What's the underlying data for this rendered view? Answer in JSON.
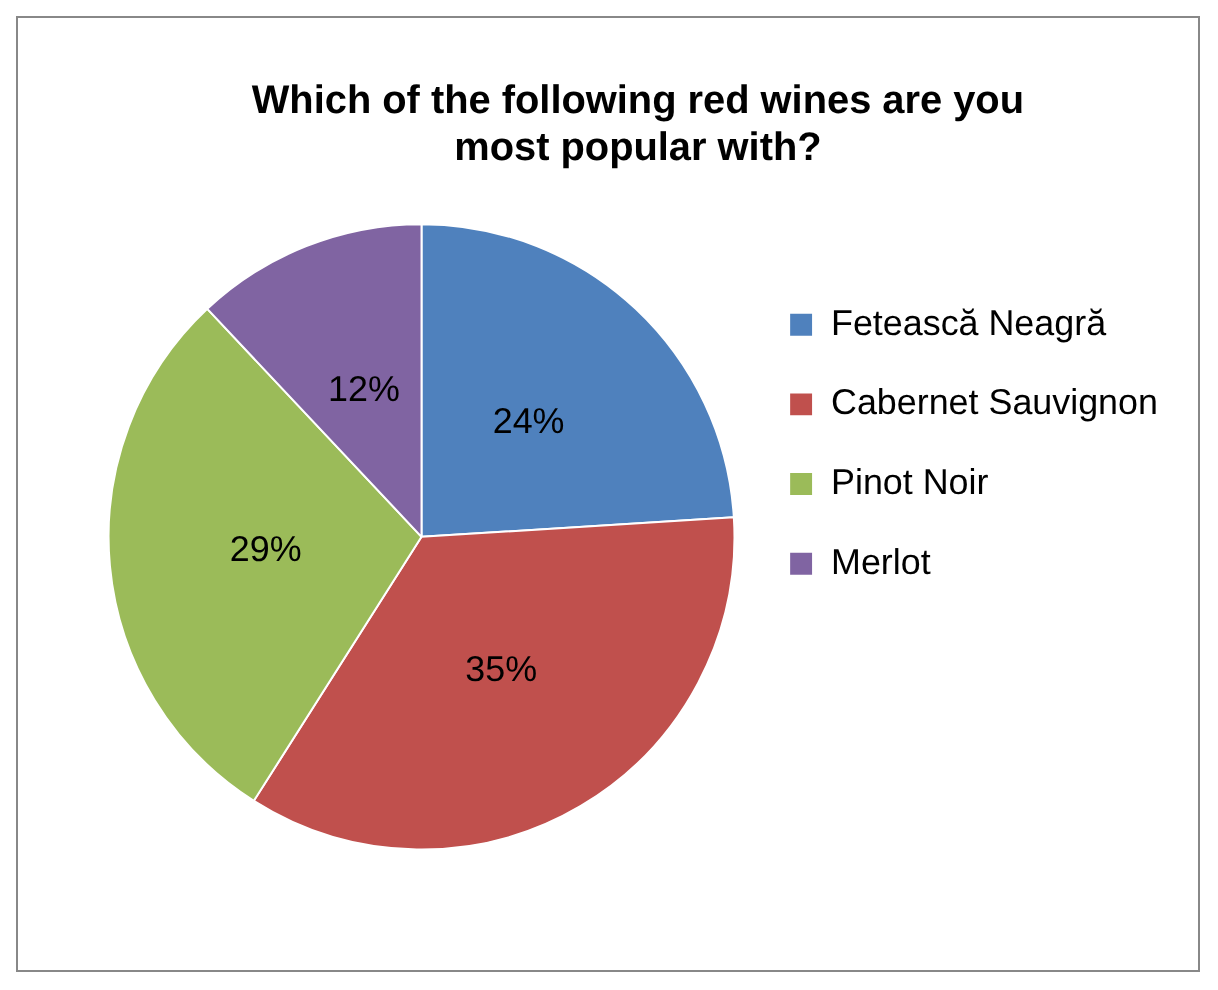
{
  "chart_data": {
    "type": "pie",
    "title": "Which of the following red wines are you most popular with?",
    "categories": [
      "Fetească Neagră",
      "Cabernet Sauvignon",
      "Pinot Noir",
      "Merlot"
    ],
    "values": [
      24,
      35,
      29,
      12
    ],
    "colors": [
      "#4f81bd",
      "#c0504d",
      "#9bbb59",
      "#8064a2"
    ],
    "value_labels": [
      "24%",
      "35%",
      "29%",
      "12%"
    ],
    "legend": "right"
  }
}
